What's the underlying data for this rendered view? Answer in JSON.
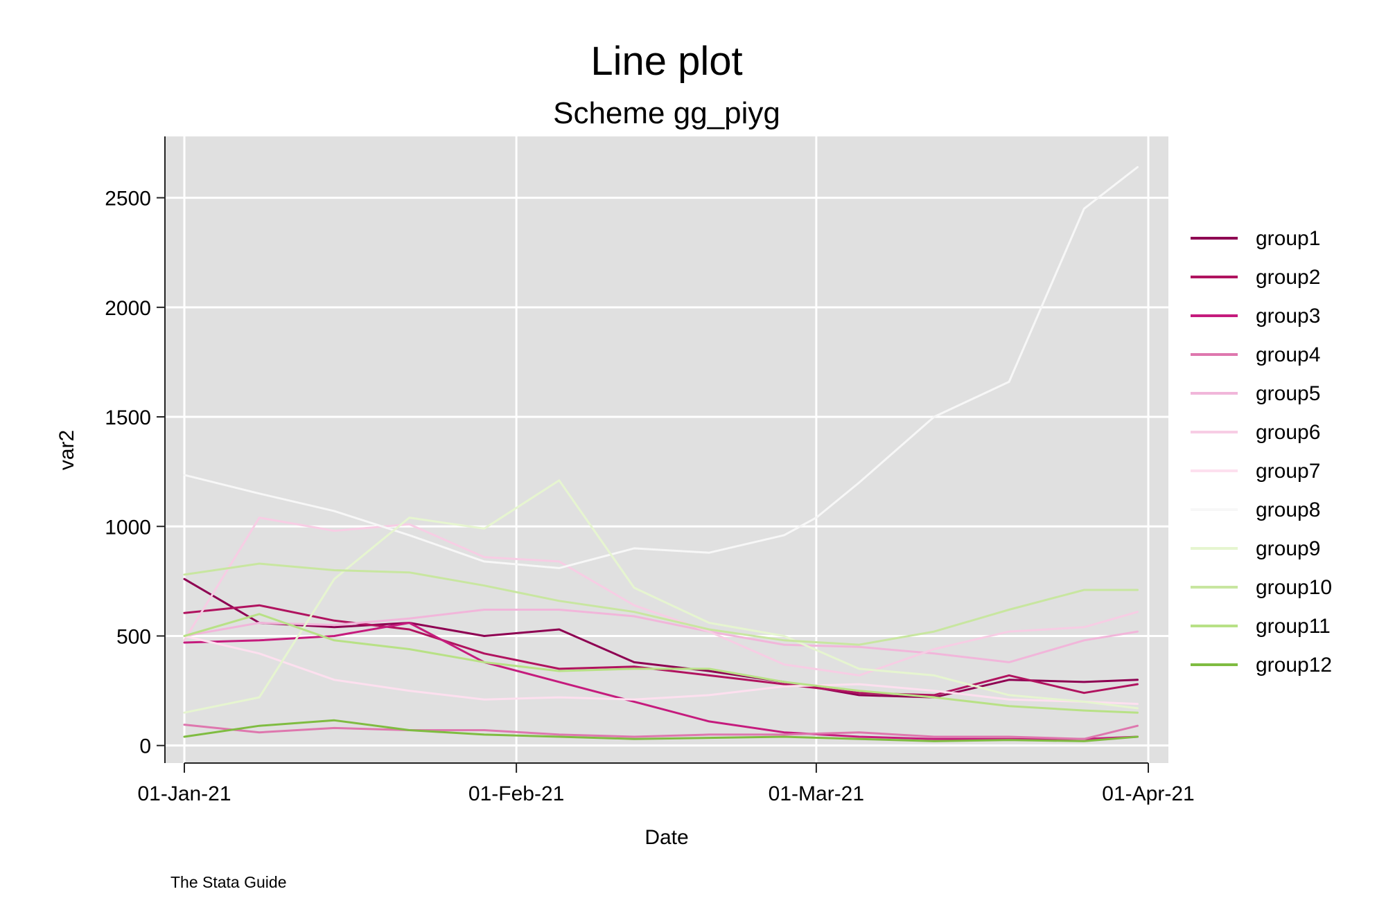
{
  "chart_data": {
    "type": "line",
    "title": "Line plot",
    "subtitle": "Scheme gg_piyg",
    "xlabel": "Date",
    "ylabel": "var2",
    "note": "The Stata Guide",
    "x_axis": {
      "min": "2021-01-01",
      "max": "2021-04-01",
      "ticks": [
        {
          "value": "2021-01-01",
          "label": "01-Jan-21"
        },
        {
          "value": "2021-02-01",
          "label": "01-Feb-21"
        },
        {
          "value": "2021-03-01",
          "label": "01-Mar-21"
        },
        {
          "value": "2021-04-01",
          "label": "01-Apr-21"
        }
      ]
    },
    "y_axis": {
      "min": -80,
      "max": 2780,
      "ticks": [
        {
          "value": 0,
          "label": "0"
        },
        {
          "value": 500,
          "label": "500"
        },
        {
          "value": 1000,
          "label": "1000"
        },
        {
          "value": 1500,
          "label": "1500"
        },
        {
          "value": 2000,
          "label": "2000"
        },
        {
          "value": 2500,
          "label": "2500"
        }
      ]
    },
    "grid": true,
    "legend_position": "right",
    "series": [
      {
        "name": "group1",
        "color": "#8e0152",
        "x": [
          "2021-01-01",
          "2021-01-08",
          "2021-01-15",
          "2021-01-22",
          "2021-01-29",
          "2021-02-05",
          "2021-02-12",
          "2021-02-19",
          "2021-02-26",
          "2021-03-05",
          "2021-03-12",
          "2021-03-19",
          "2021-03-26",
          "2021-03-31"
        ],
        "y": [
          760,
          560,
          540,
          560,
          500,
          530,
          380,
          340,
          290,
          230,
          220,
          300,
          290,
          300
        ]
      },
      {
        "name": "group2",
        "color": "#b0135f",
        "x": [
          "2021-01-01",
          "2021-01-08",
          "2021-01-15",
          "2021-01-22",
          "2021-01-29",
          "2021-02-05",
          "2021-02-12",
          "2021-02-19",
          "2021-02-26",
          "2021-03-05",
          "2021-03-12",
          "2021-03-19",
          "2021-03-26",
          "2021-03-31"
        ],
        "y": [
          605,
          640,
          570,
          530,
          420,
          350,
          360,
          320,
          280,
          240,
          230,
          320,
          240,
          280
        ]
      },
      {
        "name": "group3",
        "color": "#c51b7d",
        "x": [
          "2021-01-01",
          "2021-01-08",
          "2021-01-15",
          "2021-01-22",
          "2021-01-29",
          "2021-02-05",
          "2021-02-12",
          "2021-02-19",
          "2021-02-26",
          "2021-03-05",
          "2021-03-12",
          "2021-03-19",
          "2021-03-26",
          "2021-03-31"
        ],
        "y": [
          470,
          480,
          500,
          560,
          380,
          290,
          200,
          110,
          60,
          40,
          30,
          30,
          30,
          40
        ]
      },
      {
        "name": "group4",
        "color": "#de77ae",
        "x": [
          "2021-01-01",
          "2021-01-08",
          "2021-01-15",
          "2021-01-22",
          "2021-01-29",
          "2021-02-05",
          "2021-02-12",
          "2021-02-19",
          "2021-02-26",
          "2021-03-05",
          "2021-03-12",
          "2021-03-19",
          "2021-03-26",
          "2021-03-31"
        ],
        "y": [
          95,
          60,
          80,
          70,
          70,
          50,
          40,
          50,
          50,
          60,
          40,
          40,
          30,
          90
        ]
      },
      {
        "name": "group5",
        "color": "#f1b6da",
        "x": [
          "2021-01-01",
          "2021-01-08",
          "2021-01-15",
          "2021-01-22",
          "2021-01-29",
          "2021-02-05",
          "2021-02-12",
          "2021-02-19",
          "2021-02-26",
          "2021-03-05",
          "2021-03-12",
          "2021-03-19",
          "2021-03-26",
          "2021-03-31"
        ],
        "y": [
          500,
          560,
          550,
          580,
          620,
          620,
          590,
          520,
          460,
          450,
          420,
          380,
          480,
          520
        ]
      },
      {
        "name": "group6",
        "color": "#f7cde4",
        "x": [
          "2021-01-01",
          "2021-01-08",
          "2021-01-15",
          "2021-01-22",
          "2021-01-29",
          "2021-02-05",
          "2021-02-12",
          "2021-02-19",
          "2021-02-26",
          "2021-03-05",
          "2021-03-12",
          "2021-03-19",
          "2021-03-26",
          "2021-03-31"
        ],
        "y": [
          480,
          1040,
          980,
          1010,
          860,
          840,
          640,
          520,
          370,
          320,
          440,
          520,
          540,
          610
        ]
      },
      {
        "name": "group7",
        "color": "#fde0ef",
        "x": [
          "2021-01-01",
          "2021-01-08",
          "2021-01-15",
          "2021-01-22",
          "2021-01-29",
          "2021-02-05",
          "2021-02-12",
          "2021-02-19",
          "2021-02-26",
          "2021-03-05",
          "2021-03-12",
          "2021-03-19",
          "2021-03-26",
          "2021-03-31"
        ],
        "y": [
          500,
          420,
          300,
          250,
          210,
          220,
          210,
          230,
          270,
          280,
          250,
          210,
          200,
          190
        ]
      },
      {
        "name": "group8",
        "color": "#f7f7f7",
        "x": [
          "2021-01-01",
          "2021-01-08",
          "2021-01-15",
          "2021-01-22",
          "2021-01-29",
          "2021-02-05",
          "2021-02-12",
          "2021-02-19",
          "2021-02-26",
          "2021-03-01",
          "2021-03-05",
          "2021-03-12",
          "2021-03-19",
          "2021-03-26",
          "2021-03-31"
        ],
        "y": [
          1235,
          1150,
          1070,
          960,
          840,
          810,
          900,
          880,
          960,
          1040,
          1200,
          1500,
          1660,
          2450,
          2640
        ]
      },
      {
        "name": "group9",
        "color": "#e6f5d0",
        "x": [
          "2021-01-01",
          "2021-01-08",
          "2021-01-15",
          "2021-01-22",
          "2021-01-29",
          "2021-02-05",
          "2021-02-12",
          "2021-02-19",
          "2021-02-26",
          "2021-03-05",
          "2021-03-12",
          "2021-03-19",
          "2021-03-26",
          "2021-03-31"
        ],
        "y": [
          150,
          220,
          760,
          1040,
          990,
          1210,
          720,
          560,
          500,
          350,
          320,
          230,
          200,
          170
        ]
      },
      {
        "name": "group10",
        "color": "#c8e6a0",
        "x": [
          "2021-01-01",
          "2021-01-08",
          "2021-01-15",
          "2021-01-22",
          "2021-01-29",
          "2021-02-05",
          "2021-02-12",
          "2021-02-19",
          "2021-02-26",
          "2021-03-05",
          "2021-03-12",
          "2021-03-19",
          "2021-03-26",
          "2021-03-31"
        ],
        "y": [
          780,
          830,
          800,
          790,
          730,
          660,
          610,
          530,
          480,
          460,
          520,
          620,
          710,
          710
        ]
      },
      {
        "name": "group11",
        "color": "#b8e186",
        "x": [
          "2021-01-01",
          "2021-01-08",
          "2021-01-15",
          "2021-01-22",
          "2021-01-29",
          "2021-02-05",
          "2021-02-12",
          "2021-02-19",
          "2021-02-26",
          "2021-03-05",
          "2021-03-12",
          "2021-03-19",
          "2021-03-26",
          "2021-03-31"
        ],
        "y": [
          500,
          600,
          480,
          440,
          380,
          340,
          350,
          350,
          290,
          250,
          220,
          180,
          160,
          150
        ]
      },
      {
        "name": "group12",
        "color": "#7fbc41",
        "x": [
          "2021-01-01",
          "2021-01-08",
          "2021-01-15",
          "2021-01-22",
          "2021-01-29",
          "2021-02-05",
          "2021-02-12",
          "2021-02-19",
          "2021-02-26",
          "2021-03-05",
          "2021-03-12",
          "2021-03-19",
          "2021-03-26",
          "2021-03-31"
        ],
        "y": [
          40,
          90,
          115,
          70,
          50,
          40,
          30,
          35,
          40,
          30,
          20,
          25,
          20,
          40
        ]
      }
    ]
  }
}
